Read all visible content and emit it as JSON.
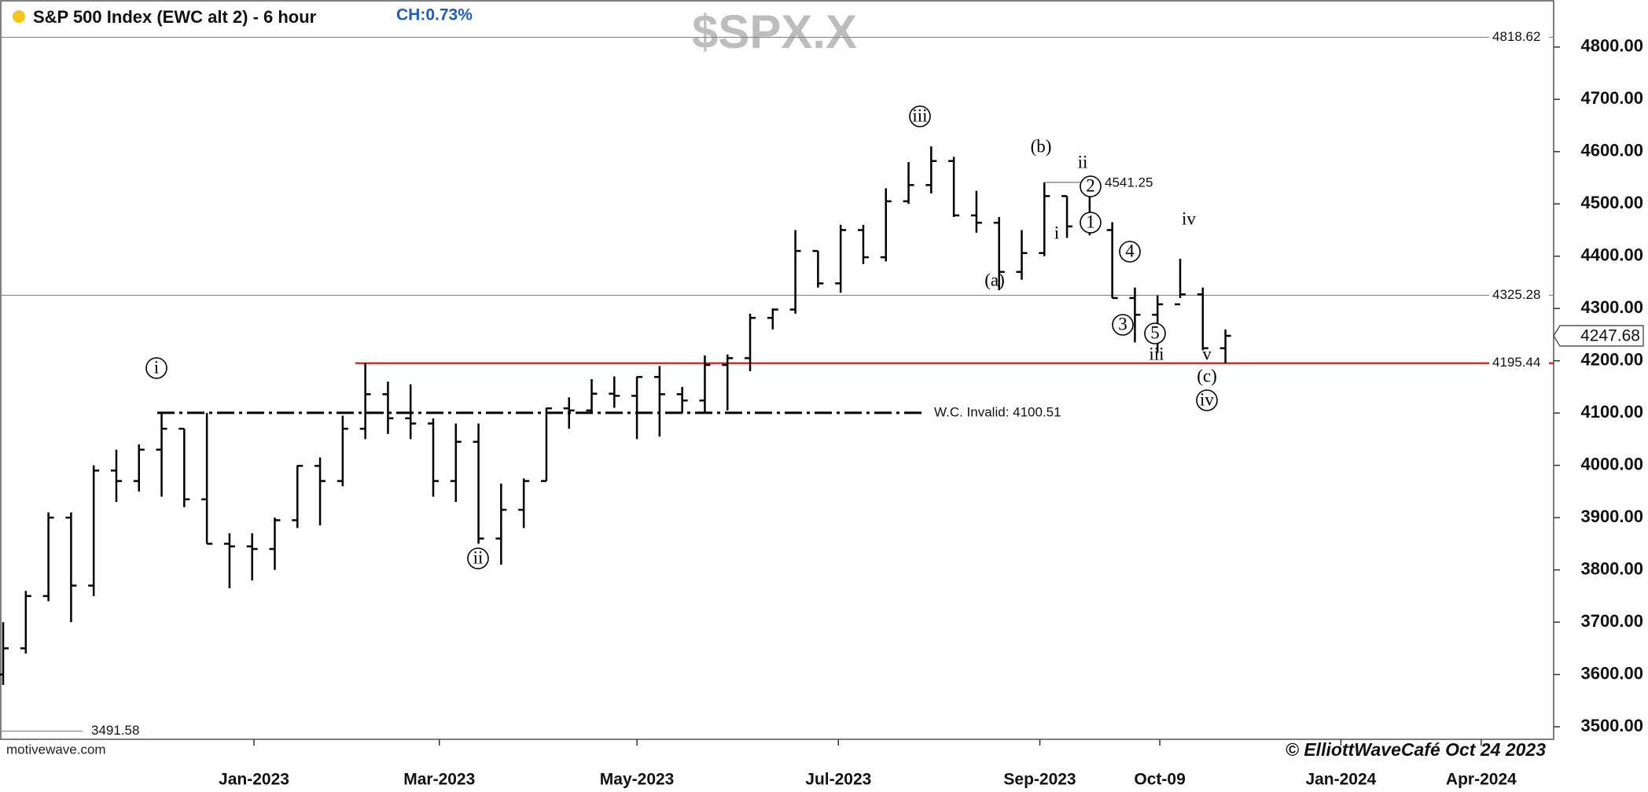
{
  "chart_data": {
    "type": "ohlc",
    "title": "S&P 500 Index (EWC alt 2) - 6 hour",
    "change": "CH:0.73%",
    "symbol": "$SPX.X",
    "source": "motivewave.com",
    "credit": "© ElliottWaveCafé Oct 24 2023",
    "color": "#000000",
    "x": [
      0,
      1,
      2,
      3,
      4,
      5,
      6,
      7,
      8,
      9,
      10,
      11,
      12,
      13,
      14,
      15,
      16,
      17,
      18,
      19,
      20,
      21,
      22,
      23,
      24,
      25,
      26,
      27,
      28,
      29,
      30,
      31,
      32,
      33,
      34,
      35,
      36,
      37,
      38,
      39,
      40,
      41,
      42,
      43,
      44,
      45,
      46,
      47,
      48,
      49,
      50,
      51,
      52,
      53,
      54
    ],
    "open": [
      3600,
      3650,
      3750,
      3900,
      3770,
      3990,
      3970,
      4030,
      4070,
      3935,
      3850,
      3845,
      3840,
      3895,
      3999,
      3970,
      4070,
      4136,
      4090,
      4080,
      3970,
      4045,
      3860,
      3915,
      3970,
      4109,
      4105,
      4137,
      4133,
      4169,
      4136,
      4124,
      4192,
      4205,
      4282,
      4298,
      4410,
      4348,
      4450,
      4398,
      4505,
      4536,
      4582,
      4478,
      4464,
      4370,
      4406,
      4515,
      4457,
      4450,
      4320,
      4288,
      4308,
      4327,
      4224
    ],
    "high": [
      3700,
      3760,
      3910,
      3910,
      4000,
      4030,
      4040,
      4100,
      4070,
      4100,
      3870,
      3870,
      3900,
      4000,
      4015,
      4095,
      4195,
      4160,
      4155,
      4090,
      4080,
      4080,
      3965,
      3975,
      4110,
      4130,
      4165,
      4170,
      4170,
      4190,
      4150,
      4210,
      4212,
      4290,
      4300,
      4450,
      4410,
      4460,
      4460,
      4530,
      4580,
      4610,
      4590,
      4525,
      4475,
      4450,
      4541.25,
      4515,
      4515,
      4465,
      4340,
      4325,
      4395,
      4340,
      4260
    ],
    "low": [
      3580,
      3640,
      3740,
      3700,
      3750,
      3930,
      3950,
      3940,
      3920,
      3850,
      3765,
      3780,
      3800,
      3880,
      3885,
      3960,
      4050,
      4060,
      4050,
      3940,
      3930,
      3850,
      3810,
      3880,
      3970,
      4070,
      4100,
      4110,
      4050,
      4055,
      4100,
      4100,
      4105,
      4180,
      4260,
      4290,
      4340,
      4330,
      4385,
      4390,
      4500,
      4520,
      4475,
      4445,
      4335,
      4355,
      4400,
      4435,
      4440,
      4320,
      4235,
      4215,
      4320,
      4220,
      4195.44
    ],
    "close": [
      3650,
      3750,
      3900,
      3770,
      3990,
      3970,
      4030,
      4070,
      3935,
      3850,
      3845,
      3840,
      3895,
      3999,
      3970,
      4070,
      4136,
      4090,
      4080,
      3970,
      4045,
      3860,
      3915,
      3970,
      4109,
      4105,
      4137,
      4133,
      4169,
      4136,
      4124,
      4192,
      4205,
      4282,
      4298,
      4410,
      4348,
      4450,
      4398,
      4505,
      4536,
      4582,
      4478,
      4464,
      4370,
      4406,
      4515,
      4457,
      4450,
      4320,
      4288,
      4308,
      4327,
      4224,
      4247.68
    ],
    "xlim": [
      -0.14,
      68.5
    ],
    "xticks": [
      {
        "value": 11.08,
        "label": "Jan-2023"
      },
      {
        "value": 19.27,
        "label": "Mar-2023"
      },
      {
        "value": 28.0,
        "label": "May-2023"
      },
      {
        "value": 36.9,
        "label": "Jul-2023"
      },
      {
        "value": 45.8,
        "label": "Sep-2023"
      },
      {
        "value": 51.1,
        "label": "Oct-09"
      },
      {
        "value": 59.1,
        "label": "Jan-2024"
      },
      {
        "value": 65.3,
        "label": "Apr-2024"
      }
    ],
    "ylim": [
      3476,
      4890
    ],
    "yticks": [
      {
        "value": 3500,
        "label": "3500.00"
      },
      {
        "value": 3600,
        "label": "3600.00"
      },
      {
        "value": 3700,
        "label": "3700.00"
      },
      {
        "value": 3800,
        "label": "3800.00"
      },
      {
        "value": 3900,
        "label": "3900.00"
      },
      {
        "value": 4000,
        "label": "4000.00"
      },
      {
        "value": 4100,
        "label": "4100.00"
      },
      {
        "value": 4200,
        "label": "4200.00"
      },
      {
        "value": 4300,
        "label": "4300.00"
      },
      {
        "value": 4400,
        "label": "4400.00"
      },
      {
        "value": 4500,
        "label": "4500.00"
      },
      {
        "value": 4600,
        "label": "4600.00"
      },
      {
        "value": 4700,
        "label": "4700.00"
      },
      {
        "value": 4800,
        "label": "4800.00"
      }
    ],
    "levels": [
      {
        "value": 4818.62,
        "color": "#888888"
      },
      {
        "value": 4325.28,
        "color": "#888888"
      },
      {
        "value": 4195.44,
        "color": "#e00000"
      },
      {
        "value": 3491.58,
        "color": "#888888"
      }
    ],
    "invalidation": {
      "label": "W.C. Invalid: 4100.51",
      "value": 4100.51
    },
    "waves": [
      "i",
      "ii",
      "iii",
      "(a)",
      "(b)",
      "ii",
      "i",
      "2",
      "1",
      "4",
      "3",
      "5",
      "iii",
      "iv",
      "v",
      "(c)",
      "iv"
    ]
  }
}
